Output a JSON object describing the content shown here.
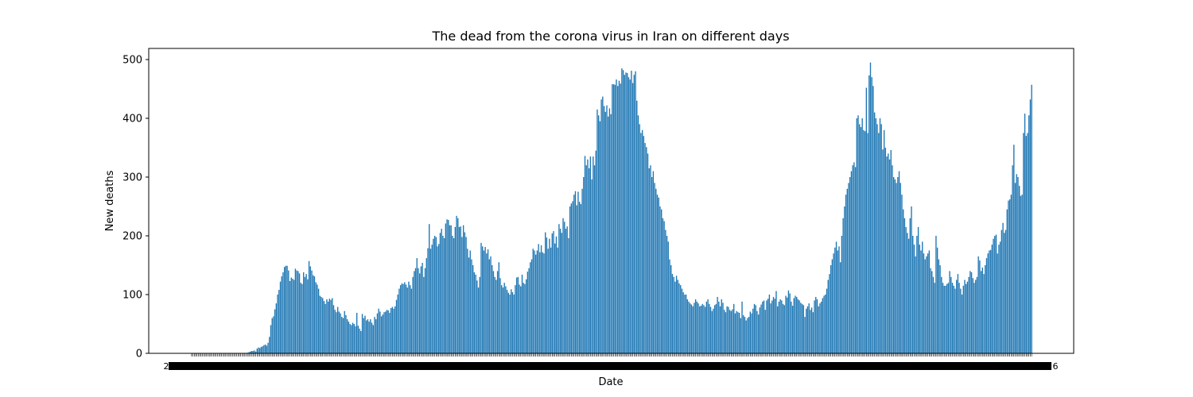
{
  "chart_data": {
    "type": "bar",
    "title": "The dead from the corona virus in Iran on different days",
    "xlabel": "Date",
    "ylabel": "New deaths",
    "ylim": [
      0,
      520
    ],
    "yticks": [
      0,
      100,
      200,
      300,
      400,
      500
    ],
    "xtick_first": "2",
    "xtick_last": "6",
    "grid": false,
    "legend": "none",
    "color": "#1f77b4",
    "values": [
      0,
      0,
      0,
      0,
      0,
      0,
      0,
      0,
      0,
      0,
      0,
      0,
      0,
      0,
      0,
      0,
      0,
      0,
      0,
      0,
      0,
      0,
      0,
      0,
      0,
      0,
      0,
      0,
      0,
      0,
      0,
      0,
      0,
      0,
      0,
      0,
      0,
      0,
      0,
      0,
      0,
      1,
      2,
      3,
      4,
      4,
      5,
      3,
      8,
      10,
      9,
      11,
      12,
      14,
      15,
      13,
      18,
      28,
      48,
      60,
      63,
      75,
      85,
      100,
      108,
      122,
      131,
      138,
      147,
      149,
      149,
      141,
      123,
      129,
      127,
      125,
      144,
      141,
      140,
      136,
      120,
      118,
      138,
      130,
      135,
      126,
      157,
      148,
      141,
      133,
      131,
      121,
      117,
      110,
      98,
      96,
      94,
      89,
      84,
      92,
      88,
      93,
      91,
      94,
      82,
      74,
      70,
      79,
      71,
      68,
      62,
      60,
      72,
      65,
      58,
      54,
      50,
      48,
      52,
      50,
      46,
      69,
      47,
      42,
      38,
      67,
      60,
      64,
      56,
      58,
      54,
      58,
      52,
      48,
      62,
      58,
      68,
      76,
      71,
      63,
      66,
      70,
      71,
      74,
      73,
      69,
      77,
      79,
      76,
      80,
      91,
      100,
      110,
      116,
      119,
      118,
      121,
      117,
      112,
      122,
      116,
      110,
      130,
      140,
      145,
      162,
      145,
      136,
      148,
      154,
      130,
      145,
      162,
      179,
      220,
      178,
      185,
      195,
      200,
      198,
      182,
      186,
      205,
      212,
      200,
      196,
      221,
      228,
      227,
      218,
      218,
      200,
      196,
      215,
      234,
      230,
      215,
      216,
      198,
      218,
      206,
      198,
      178,
      163,
      175,
      160,
      150,
      138,
      134,
      124,
      112,
      130,
      188,
      182,
      175,
      181,
      170,
      177,
      160,
      165,
      150,
      140,
      130,
      125,
      140,
      155,
      128,
      116,
      112,
      120,
      114,
      108,
      103,
      100,
      109,
      104,
      100,
      116,
      129,
      130,
      117,
      114,
      134,
      120,
      118,
      126,
      139,
      145,
      155,
      160,
      178,
      175,
      168,
      175,
      186,
      172,
      184,
      172,
      170,
      206,
      197,
      178,
      195,
      180,
      204,
      208,
      187,
      199,
      180,
      220,
      212,
      205,
      230,
      224,
      212,
      216,
      196,
      250,
      255,
      259,
      270,
      276,
      252,
      275,
      258,
      254,
      280,
      300,
      336,
      320,
      330,
      315,
      335,
      296,
      335,
      320,
      345,
      415,
      405,
      395,
      432,
      437,
      421,
      411,
      422,
      403,
      417,
      407,
      458,
      458,
      457,
      466,
      455,
      464,
      459,
      485,
      482,
      474,
      478,
      477,
      470,
      466,
      481,
      460,
      474,
      480,
      430,
      405,
      390,
      375,
      380,
      370,
      358,
      351,
      340,
      315,
      320,
      300,
      310,
      290,
      280,
      270,
      265,
      250,
      245,
      230,
      225,
      210,
      200,
      190,
      160,
      150,
      135,
      130,
      122,
      132,
      125,
      119,
      116,
      110,
      104,
      100,
      100,
      92,
      88,
      85,
      83,
      80,
      86,
      92,
      88,
      85,
      80,
      81,
      84,
      82,
      79,
      88,
      92,
      84,
      79,
      72,
      76,
      82,
      84,
      96,
      88,
      80,
      92,
      86,
      74,
      70,
      80,
      79,
      74,
      72,
      75,
      84,
      68,
      72,
      70,
      69,
      60,
      88,
      65,
      62,
      56,
      60,
      62,
      71,
      68,
      76,
      84,
      82,
      72,
      66,
      78,
      83,
      88,
      90,
      74,
      90,
      93,
      100,
      85,
      90,
      96,
      93,
      106,
      80,
      88,
      92,
      90,
      84,
      82,
      98,
      95,
      107,
      102,
      88,
      81,
      94,
      98,
      96,
      92,
      90,
      86,
      84,
      82,
      62,
      76,
      80,
      85,
      74,
      78,
      70,
      90,
      96,
      92,
      80,
      85,
      88,
      94,
      98,
      100,
      110,
      125,
      135,
      150,
      160,
      170,
      180,
      190,
      175,
      182,
      155,
      200,
      230,
      250,
      270,
      280,
      290,
      300,
      310,
      320,
      325,
      317,
      400,
      405,
      390,
      385,
      400,
      380,
      378,
      452,
      375,
      473,
      495,
      470,
      455,
      410,
      400,
      390,
      375,
      400,
      390,
      347,
      380,
      350,
      335,
      340,
      330,
      346,
      320,
      300,
      296,
      290,
      300,
      310,
      290,
      270,
      245,
      230,
      215,
      205,
      195,
      230,
      250,
      200,
      185,
      165,
      200,
      215,
      185,
      175,
      190,
      170,
      160,
      165,
      170,
      175,
      145,
      140,
      130,
      120,
      200,
      180,
      160,
      150,
      130,
      120,
      115,
      115,
      118,
      120,
      140,
      130,
      120,
      115,
      110,
      125,
      135,
      120,
      110,
      100,
      115,
      125,
      118,
      122,
      130,
      140,
      138,
      128,
      120,
      125,
      130,
      165,
      158,
      140,
      146,
      135,
      150,
      162,
      170,
      175,
      176,
      185,
      195,
      200,
      202,
      170,
      185,
      190,
      210,
      222,
      205,
      210,
      245,
      260,
      262,
      270,
      320,
      355,
      290,
      305,
      300,
      285,
      268,
      270,
      375,
      408,
      370,
      375,
      405,
      432,
      457
    ]
  }
}
